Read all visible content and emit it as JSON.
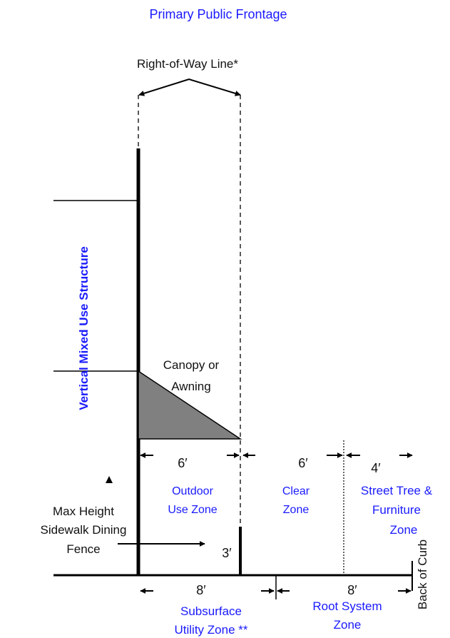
{
  "title": "Primary Public Frontage",
  "row_label": "Right-of-Way Line*",
  "structure_label": "Vertical Mixed Use Structure",
  "canopy_label": [
    "Canopy or",
    "Awning"
  ],
  "fence_label": [
    "Max Height",
    "Sidewalk Dining",
    "Fence"
  ],
  "fence_height": "3′",
  "back_of_curb": "Back of Curb",
  "upper_dims": [
    "6′",
    "6′",
    "4′"
  ],
  "zones": {
    "outdoor": [
      "Outdoor",
      "Use Zone"
    ],
    "clear": [
      "Clear",
      "Zone"
    ],
    "street_tree": [
      "Street Tree &",
      "Furniture",
      "Zone"
    ]
  },
  "lower_dims": [
    "8′",
    "8′"
  ],
  "lower_zones": {
    "subsurface": [
      "Subsurface",
      "Utility Zone **"
    ],
    "root": [
      "Root System",
      "Zone"
    ]
  },
  "colors": {
    "blue_text": "#1a1aff",
    "canopy_fill": "#808080",
    "lines": "#000000"
  }
}
